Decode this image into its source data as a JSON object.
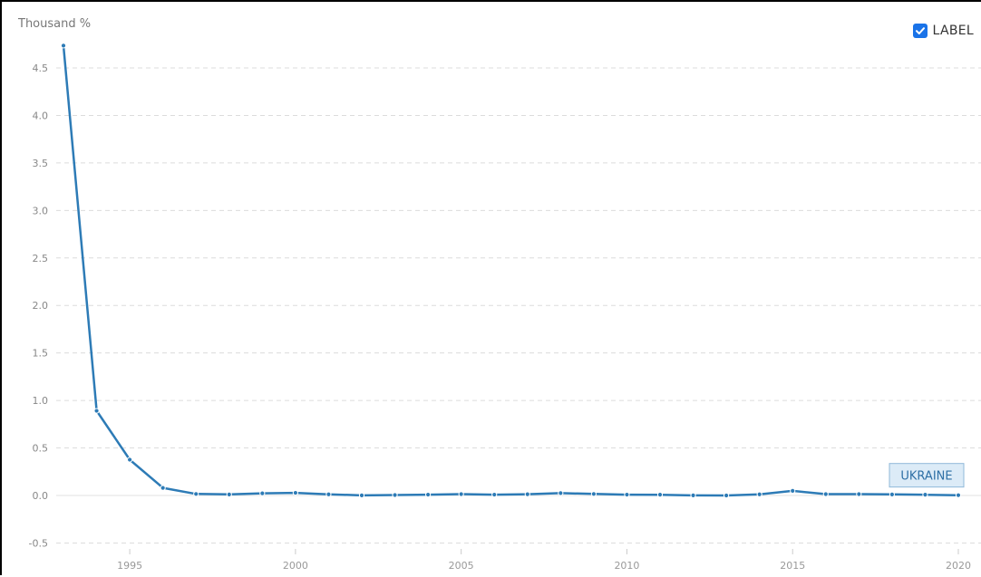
{
  "header": {
    "unit_label": "Thousand %",
    "label_toggle": {
      "text": "LABEL",
      "checked": true
    }
  },
  "chart_data": {
    "type": "line",
    "title": "",
    "xlabel": "",
    "ylabel": "Thousand %",
    "xlim": [
      1993,
      2020
    ],
    "ylim": [
      -0.5,
      4.7
    ],
    "grid": true,
    "y_ticks": [
      "-0.5",
      "0.0",
      "0.5",
      "1.0",
      "1.5",
      "2.0",
      "2.5",
      "3.0",
      "3.5",
      "4.0",
      "4.5"
    ],
    "x_ticks": [
      "1995",
      "2000",
      "2005",
      "2010",
      "2015",
      "2020"
    ],
    "x": [
      1993,
      1994,
      1995,
      1996,
      1997,
      1998,
      1999,
      2000,
      2001,
      2002,
      2003,
      2004,
      2005,
      2006,
      2007,
      2008,
      2009,
      2010,
      2011,
      2012,
      2013,
      2014,
      2015,
      2016,
      2017,
      2018,
      2019,
      2020
    ],
    "series": [
      {
        "name": "UKRAINE",
        "color": "#2d7bb6",
        "values": [
          4.735,
          0.891,
          0.377,
          0.08,
          0.016,
          0.011,
          0.023,
          0.028,
          0.012,
          0.001,
          0.005,
          0.009,
          0.014,
          0.009,
          0.013,
          0.025,
          0.016,
          0.009,
          0.008,
          0.001,
          0.0,
          0.012,
          0.049,
          0.014,
          0.014,
          0.011,
          0.008,
          0.003
        ]
      }
    ]
  }
}
